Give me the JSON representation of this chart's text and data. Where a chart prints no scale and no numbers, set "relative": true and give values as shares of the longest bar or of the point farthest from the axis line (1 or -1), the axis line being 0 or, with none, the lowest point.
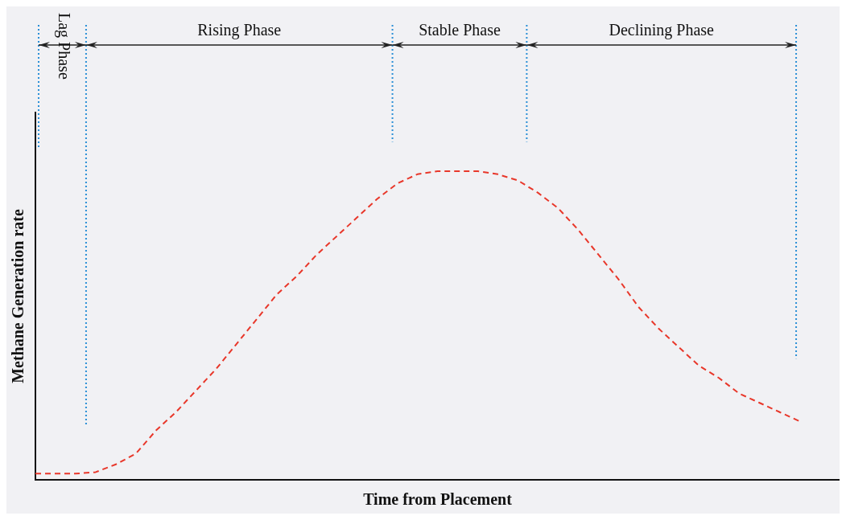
{
  "chart_data": {
    "type": "line",
    "relative": true,
    "xlabel": "Time from Placement",
    "ylabel": "Methane Generation rate",
    "categories": [
      null,
      null,
      null,
      null,
      null,
      null,
      null,
      null,
      null,
      null,
      null,
      null,
      null,
      null,
      null,
      null,
      null,
      null,
      null,
      null,
      null,
      null,
      null,
      null,
      null,
      null,
      null,
      null,
      null,
      null,
      null,
      null,
      null,
      null,
      null,
      null,
      null,
      null,
      null
    ],
    "series": [
      {
        "color": "#e8372a",
        "values": [
          0.02,
          0.02,
          0.02,
          0.025,
          0.05,
          0.085,
          0.16,
          0.22,
          0.29,
          0.36,
          0.44,
          0.52,
          0.6,
          0.66,
          0.73,
          0.79,
          0.85,
          0.91,
          0.96,
          0.99,
          1,
          1,
          1,
          0.99,
          0.97,
          0.93,
          0.88,
          0.81,
          0.73,
          0.65,
          0.56,
          0.49,
          0.43,
          0.37,
          0.33,
          0.28,
          0.25,
          0.22,
          0.19
        ]
      }
    ],
    "annotations": [
      "Lag Phase",
      "Rising Phase",
      "Stable Phase",
      "Declining Phase"
    ],
    "line_style": "dashed",
    "marker": "none"
  }
}
